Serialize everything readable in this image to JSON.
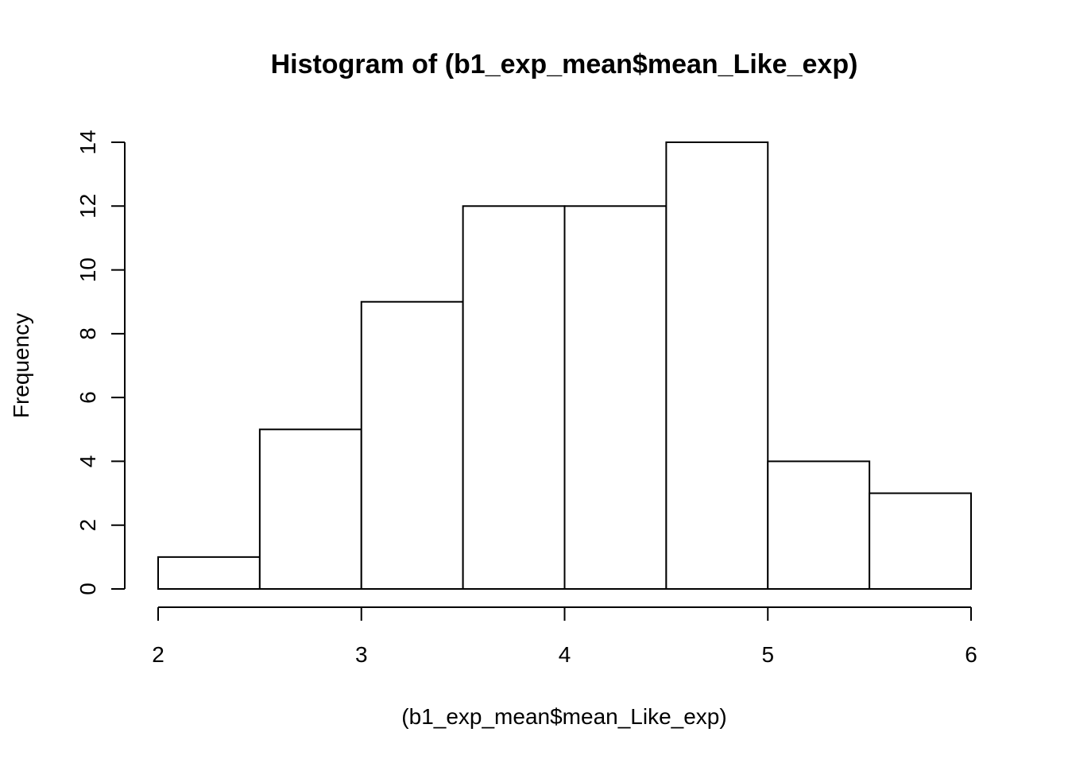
{
  "chart_data": {
    "type": "bar",
    "title": "Histogram of (b1_exp_mean$mean_Like_exp)",
    "xlabel": "(b1_exp_mean$mean_Like_exp)",
    "ylabel": "Frequency",
    "bin_edges": [
      2,
      2.5,
      3,
      3.5,
      4,
      4.5,
      5,
      5.5,
      6
    ],
    "values": [
      1,
      5,
      9,
      12,
      12,
      14,
      4,
      3
    ],
    "xlim": [
      2,
      6
    ],
    "ylim": [
      0,
      14
    ],
    "x_ticks": [
      2,
      3,
      4,
      5,
      6
    ],
    "y_ticks": [
      0,
      2,
      4,
      6,
      8,
      10,
      12,
      14
    ],
    "grid": false,
    "legend": "none",
    "colors": {
      "bar_fill": "#ffffff",
      "bar_stroke": "#000000",
      "axis": "#000000",
      "text": "#000000"
    }
  }
}
